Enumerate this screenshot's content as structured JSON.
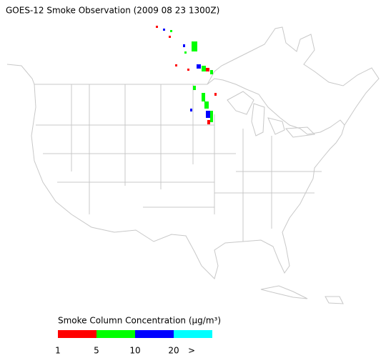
{
  "title": "GOES-12 Smoke Observation (2009 08 23  1300Z)",
  "colorbar": {
    "label": "Smoke Column Concentration (μg/m³)",
    "colors": [
      "#ff0000",
      "#00ff00",
      "#0000ff",
      "#00ffff"
    ],
    "ticks": [
      1,
      5,
      10,
      20
    ],
    "overflow": ">"
  }
}
